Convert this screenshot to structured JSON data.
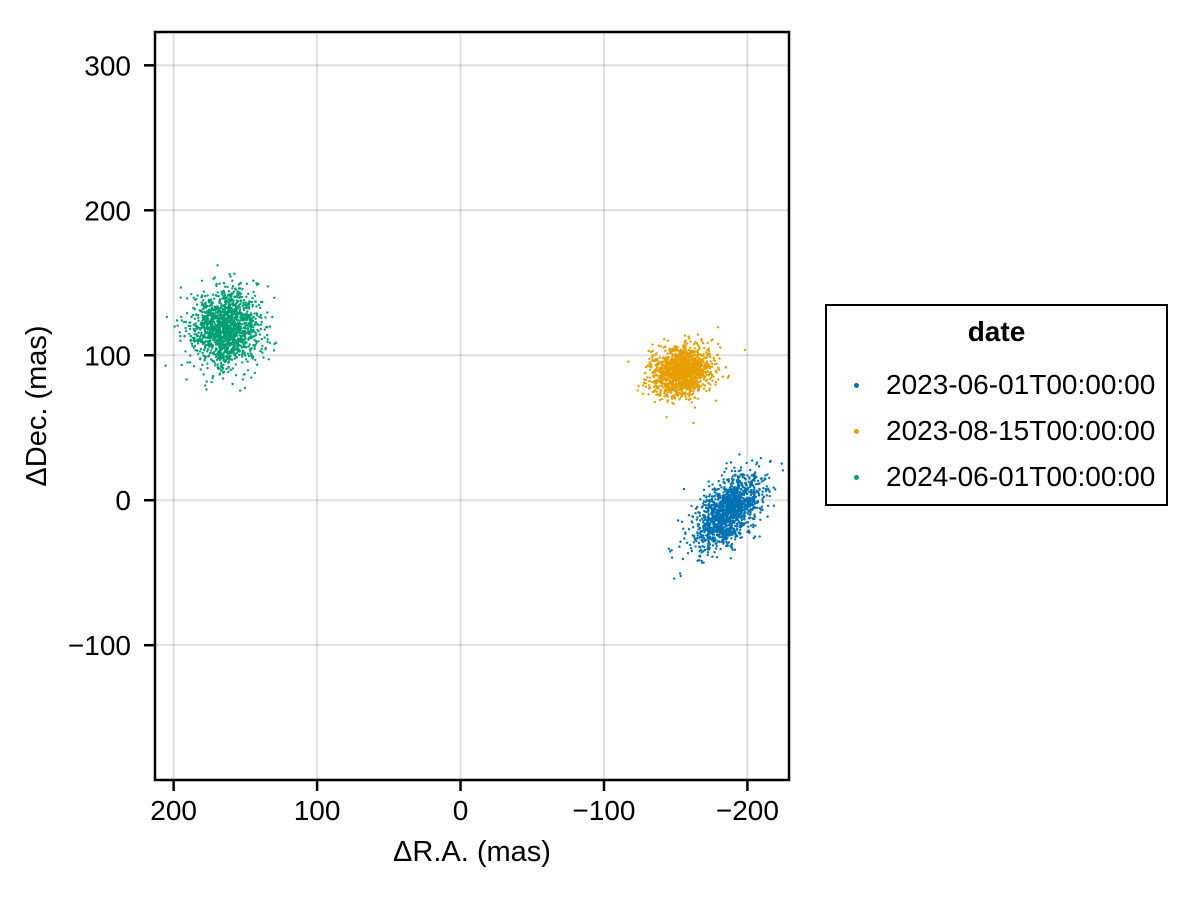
{
  "legend": {
    "title": "date",
    "entries": [
      {
        "label": "2023-06-01T00:00:00",
        "color": "#0072B2"
      },
      {
        "label": "2023-08-15T00:00:00",
        "color": "#E69F00"
      },
      {
        "label": "2024-06-01T00:00:00",
        "color": "#009E73"
      }
    ]
  },
  "chart_data": {
    "type": "scatter",
    "title": "",
    "xlabel": "ΔR.A. (mas)",
    "ylabel": "ΔDec. (mas)",
    "grid": true,
    "legend_title": "date",
    "legend_position": "right",
    "x_axis": {
      "reversed": true,
      "range": [
        213,
        -229
      ],
      "ticks": [
        200,
        100,
        0,
        -100,
        -200
      ],
      "tick_labels": [
        "200",
        "100",
        "0",
        "−100",
        "−200"
      ]
    },
    "y_axis": {
      "range": [
        -193,
        323
      ],
      "ticks": [
        300,
        200,
        100,
        0,
        -100
      ],
      "tick_labels": [
        "300",
        "200",
        "100",
        "0",
        "−100"
      ]
    },
    "series": [
      {
        "name": "2023-06-01T00:00:00",
        "color": "#0072B2",
        "n_points": 1500,
        "center": {
          "ra": -186,
          "dec": -8
        },
        "sigma": {
          "ra": 11.5,
          "dec": 13
        },
        "correlation": -0.55
      },
      {
        "name": "2023-08-15T00:00:00",
        "color": "#E69F00",
        "n_points": 1500,
        "center": {
          "ra": -154,
          "dec": 89
        },
        "sigma": {
          "ra": 10.5,
          "dec": 8.5
        },
        "correlation": -0.15
      },
      {
        "name": "2024-06-01T00:00:00",
        "color": "#009E73",
        "n_points": 1500,
        "center": {
          "ra": 164,
          "dec": 118
        },
        "sigma": {
          "ra": 12,
          "dec": 14
        },
        "correlation": -0.05
      }
    ]
  }
}
